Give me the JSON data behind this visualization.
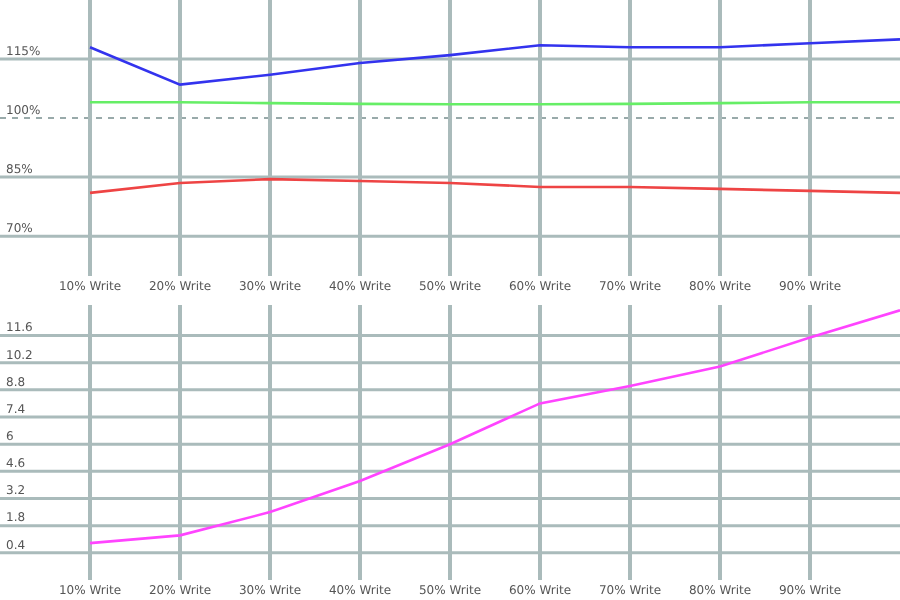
{
  "chart_data": [
    {
      "type": "line",
      "x": [
        10,
        20,
        30,
        40,
        50,
        60,
        70,
        80,
        90,
        100
      ],
      "xlim": [
        0,
        100
      ],
      "xticks": [
        {
          "value": 10,
          "label": "10% Write"
        },
        {
          "value": 20,
          "label": "20% Write"
        },
        {
          "value": 30,
          "label": "30% Write"
        },
        {
          "value": 40,
          "label": "40% Write"
        },
        {
          "value": 50,
          "label": "50% Write"
        },
        {
          "value": 60,
          "label": "60% Write"
        },
        {
          "value": 70,
          "label": "70% Write"
        },
        {
          "value": 80,
          "label": "80% Write"
        },
        {
          "value": 90,
          "label": "90% Write"
        }
      ],
      "ylim": [
        60,
        130
      ],
      "yticks": [
        {
          "value": 70,
          "label": "70%"
        },
        {
          "value": 85,
          "label": "85%"
        },
        {
          "value": 100,
          "label": "100%"
        },
        {
          "value": 115,
          "label": "115%"
        }
      ],
      "series": [
        {
          "color": "#3333ee",
          "values": [
            118,
            108.5,
            111,
            114,
            116,
            118.5,
            118,
            118,
            119,
            120
          ]
        },
        {
          "color": "#66ee66",
          "values": [
            104,
            104,
            103.8,
            103.6,
            103.5,
            103.5,
            103.6,
            103.8,
            104,
            104
          ]
        },
        {
          "color": "#ee4444",
          "values": [
            81,
            83.5,
            84.5,
            84,
            83.5,
            82.5,
            82.5,
            82,
            81.5,
            81
          ]
        }
      ],
      "ref_lines": [
        {
          "axis": "y",
          "value": 100,
          "line_style": "dotted",
          "color": "#99aaaa"
        }
      ],
      "grid": true,
      "marker": "none",
      "line_style": "solid"
    },
    {
      "type": "line",
      "x": [
        10,
        20,
        30,
        40,
        50,
        60,
        70,
        80,
        90,
        100
      ],
      "xlim": [
        0,
        100
      ],
      "xticks": [
        {
          "value": 10,
          "label": "10% Write"
        },
        {
          "value": 20,
          "label": "20% Write"
        },
        {
          "value": 30,
          "label": "30% Write"
        },
        {
          "value": 40,
          "label": "40% Write"
        },
        {
          "value": 50,
          "label": "50% Write"
        },
        {
          "value": 60,
          "label": "60% Write"
        },
        {
          "value": 70,
          "label": "70% Write"
        },
        {
          "value": 80,
          "label": "80% Write"
        },
        {
          "value": 90,
          "label": "90% Write"
        }
      ],
      "ylim": [
        -1,
        13.2
      ],
      "yticks": [
        0.4,
        1.8,
        3.2,
        4.6,
        6,
        7.4,
        8.8,
        10.2,
        11.6
      ],
      "series": [
        {
          "color": "#ff44ff",
          "values": [
            0.9,
            1.3,
            2.5,
            4.1,
            6.0,
            8.1,
            9.0,
            10.0,
            11.5,
            12.9
          ]
        }
      ],
      "grid": true,
      "marker": "none",
      "line_style": "solid"
    }
  ]
}
